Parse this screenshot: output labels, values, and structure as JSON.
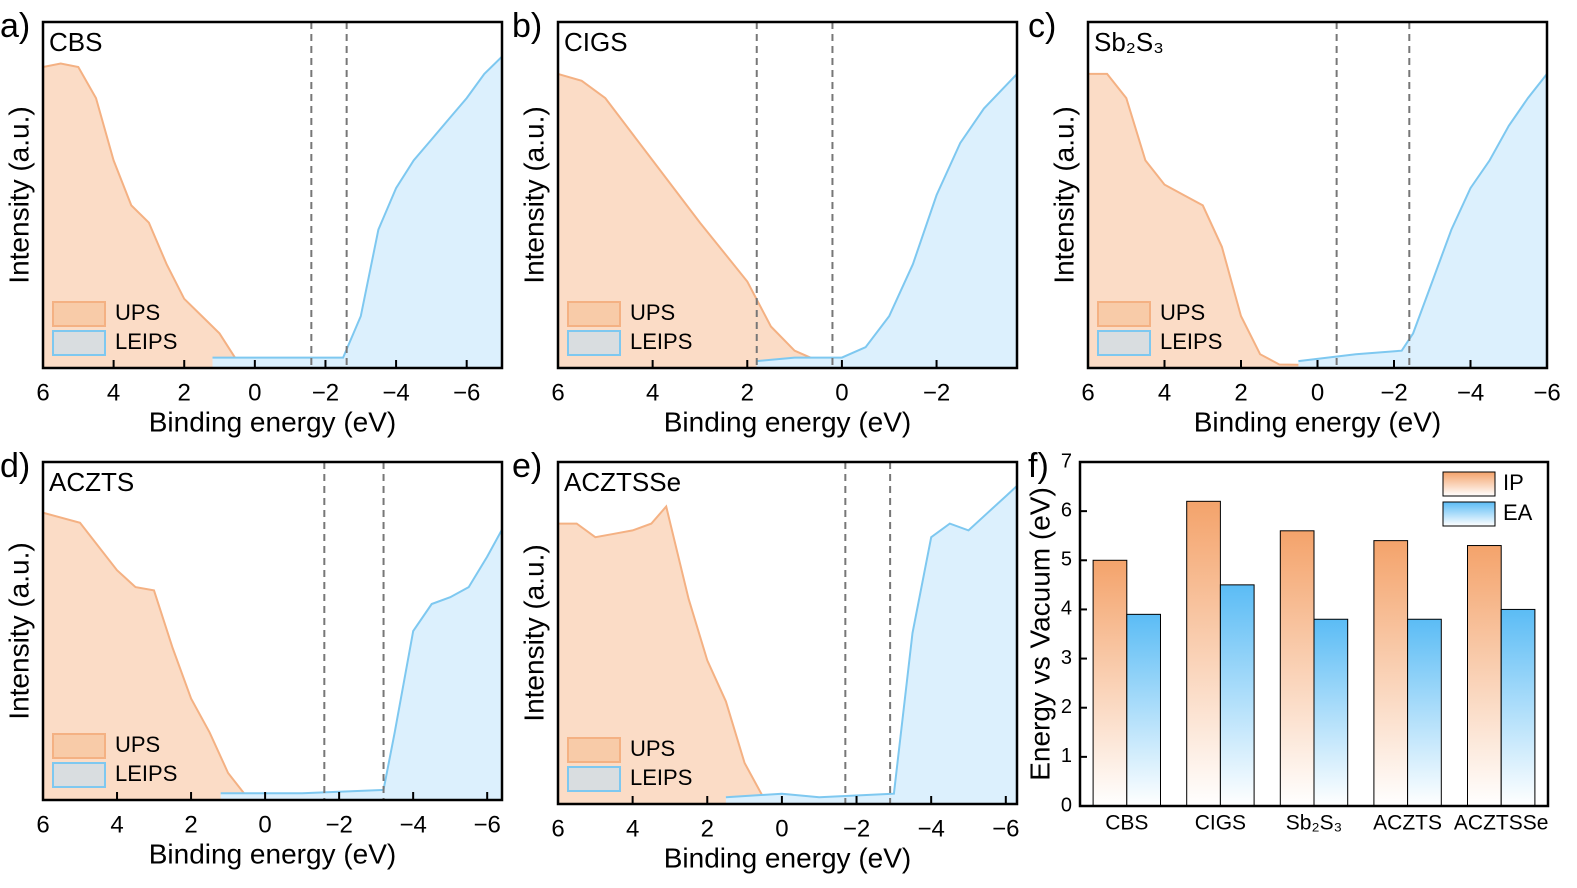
{
  "chart_data": [
    {
      "type": "area",
      "panel_label": "a)",
      "title": "CBS",
      "xlabel": "Binding energy (eV)",
      "ylabel": "Intensity (a.u.)",
      "xlim": [
        6,
        -7
      ],
      "xticks": [
        6,
        4,
        2,
        0,
        {
          "value": -2,
          "label": "−2"
        },
        {
          "value": -4,
          "label": "−4"
        },
        {
          "value": -6,
          "label": "−6"
        }
      ],
      "ylim": [
        0,
        1
      ],
      "vlines": [
        -1.6,
        -2.6
      ],
      "legend": "lower left",
      "series": [
        {
          "name": "UPS",
          "color": "#f4b183",
          "x": [
            6,
            5.5,
            5,
            4.5,
            4,
            3.5,
            3,
            2.5,
            2,
            1.5,
            1,
            0.5,
            0,
            -1
          ],
          "values": [
            0.87,
            0.88,
            0.87,
            0.78,
            0.6,
            0.47,
            0.42,
            0.3,
            0.2,
            0.15,
            0.1,
            0.02,
            0.01,
            0.01
          ]
        },
        {
          "name": "LEIPS",
          "color": "#7ec8f0",
          "x": [
            1.2,
            0,
            -1,
            -2.5,
            -3,
            -3.5,
            -4,
            -4.5,
            -5,
            -5.5,
            -6,
            -6.5,
            -7
          ],
          "values": [
            0.03,
            0.03,
            0.03,
            0.03,
            0.15,
            0.4,
            0.52,
            0.6,
            0.66,
            0.72,
            0.78,
            0.85,
            0.9
          ]
        }
      ]
    },
    {
      "type": "area",
      "panel_label": "b)",
      "title": "CIGS",
      "xlabel": "Binding energy (eV)",
      "ylabel": "Intensity (a.u.)",
      "xlim": [
        6,
        -3.7
      ],
      "xticks": [
        6,
        4,
        2,
        0,
        {
          "value": -2,
          "label": "−2"
        }
      ],
      "ylim": [
        0,
        1
      ],
      "vlines": [
        1.8,
        0.2
      ],
      "legend": "lower left",
      "series": [
        {
          "name": "UPS",
          "color": "#f4b183",
          "x": [
            6,
            5.5,
            5,
            4,
            3,
            2,
            1.5,
            1,
            0.5,
            0
          ],
          "values": [
            0.85,
            0.83,
            0.78,
            0.6,
            0.42,
            0.25,
            0.12,
            0.05,
            0.02,
            0.01
          ]
        },
        {
          "name": "LEIPS",
          "color": "#7ec8f0",
          "x": [
            1.8,
            1,
            0,
            -0.5,
            -1,
            -1.5,
            -2,
            -2.5,
            -3,
            -3.7
          ],
          "values": [
            0.02,
            0.03,
            0.03,
            0.06,
            0.15,
            0.3,
            0.5,
            0.65,
            0.75,
            0.85
          ]
        }
      ]
    },
    {
      "type": "area",
      "panel_label": "c)",
      "title": "Sb₂S₃",
      "xlabel": "Binding energy (eV)",
      "ylabel": "Intensity (a.u.)",
      "xlim": [
        6,
        -6
      ],
      "xticks": [
        6,
        4,
        2,
        0,
        {
          "value": -2,
          "label": "−2"
        },
        {
          "value": -4,
          "label": "−4"
        },
        {
          "value": -6,
          "label": "−6"
        }
      ],
      "ylim": [
        0,
        1
      ],
      "vlines": [
        -0.5,
        -2.4
      ],
      "legend": "lower left",
      "series": [
        {
          "name": "UPS",
          "color": "#f4b183",
          "x": [
            6,
            5.5,
            5,
            4.5,
            4,
            3.5,
            3,
            2.5,
            2,
            1.5,
            1,
            -5
          ],
          "values": [
            0.85,
            0.85,
            0.78,
            0.6,
            0.53,
            0.5,
            0.47,
            0.35,
            0.15,
            0.04,
            0.01,
            0
          ]
        },
        {
          "name": "LEIPS",
          "color": "#7ec8f0",
          "x": [
            0.5,
            -1,
            -2.2,
            -2.5,
            -3,
            -3.5,
            -4,
            -4.5,
            -5,
            -5.5,
            -6
          ],
          "values": [
            0.02,
            0.04,
            0.05,
            0.1,
            0.25,
            0.4,
            0.52,
            0.6,
            0.7,
            0.78,
            0.85
          ]
        }
      ]
    },
    {
      "type": "area",
      "panel_label": "d)",
      "title": "ACZTS",
      "xlabel": "Binding energy (eV)",
      "ylabel": "Intensity (a.u.)",
      "xlim": [
        6,
        -6.4
      ],
      "xticks": [
        6,
        4,
        2,
        0,
        {
          "value": -2,
          "label": "−2"
        },
        {
          "value": -4,
          "label": "−4"
        },
        {
          "value": -6,
          "label": "−6"
        }
      ],
      "ylim": [
        0,
        1
      ],
      "vlines": [
        -1.6,
        -3.2
      ],
      "legend": "lower left",
      "series": [
        {
          "name": "UPS",
          "color": "#f4b183",
          "x": [
            6,
            5,
            4,
            3.5,
            3,
            2.5,
            2,
            1.5,
            1,
            0.5,
            0,
            -1
          ],
          "values": [
            0.85,
            0.82,
            0.68,
            0.63,
            0.62,
            0.45,
            0.3,
            0.2,
            0.08,
            0.01,
            0,
            0
          ]
        },
        {
          "name": "LEIPS",
          "color": "#7ec8f0",
          "x": [
            1.2,
            0,
            -1,
            -3.2,
            -3.5,
            -4,
            -4.5,
            -5,
            -5.5,
            -6,
            -6.4
          ],
          "values": [
            0.02,
            0.02,
            0.02,
            0.03,
            0.2,
            0.5,
            0.58,
            0.6,
            0.63,
            0.72,
            0.8
          ]
        }
      ]
    },
    {
      "type": "area",
      "panel_label": "e)",
      "title": "ACZTSSe",
      "xlabel": "Binding energy (eV)",
      "ylabel": "Intensity (a.u.)",
      "xlim": [
        6,
        -6.3
      ],
      "xticks": [
        6,
        4,
        2,
        0,
        {
          "value": -2,
          "label": "−2"
        },
        {
          "value": -4,
          "label": "−4"
        },
        {
          "value": -6,
          "label": "−6"
        }
      ],
      "ylim": [
        0,
        1
      ],
      "vlines": [
        -1.7,
        -2.9
      ],
      "legend": "lower left",
      "series": [
        {
          "name": "UPS",
          "color": "#f4b183",
          "x": [
            6,
            5.5,
            5,
            4.5,
            4,
            3.5,
            3.1,
            2.5,
            2,
            1.5,
            1,
            0.5,
            0
          ],
          "values": [
            0.82,
            0.82,
            0.78,
            0.79,
            0.8,
            0.82,
            0.87,
            0.6,
            0.42,
            0.3,
            0.12,
            0.02,
            0
          ]
        },
        {
          "name": "LEIPS",
          "color": "#7ec8f0",
          "x": [
            1.5,
            0,
            -1,
            -3,
            -3.5,
            -4,
            -4.5,
            -5,
            -5.5,
            -6,
            -6.3
          ],
          "values": [
            0.02,
            0.03,
            0.02,
            0.03,
            0.5,
            0.78,
            0.82,
            0.8,
            0.85,
            0.9,
            0.93
          ]
        }
      ]
    },
    {
      "type": "bar",
      "panel_label": "f)",
      "ylabel": "Energy vs Vacuum (eV)",
      "categories": [
        "CBS",
        "CIGS",
        "Sb₂S₃",
        "ACZTS",
        "ACZTSSe"
      ],
      "ylim": [
        0,
        7
      ],
      "yticks": [
        0,
        1,
        2,
        3,
        4,
        5,
        6,
        7
      ],
      "legend": "upper right",
      "series": [
        {
          "name": "IP",
          "color": "#f4a36b",
          "values": [
            5.0,
            6.2,
            5.6,
            5.4,
            5.3
          ]
        },
        {
          "name": "EA",
          "color": "#5bbcf5",
          "values": [
            3.9,
            4.5,
            3.8,
            3.8,
            4.0
          ]
        }
      ]
    }
  ]
}
